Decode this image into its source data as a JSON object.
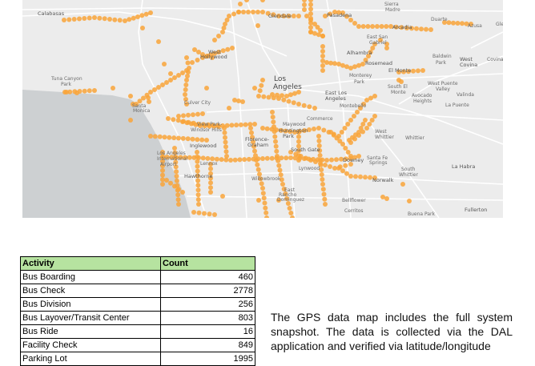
{
  "map": {
    "colors": {
      "land": "#ececec",
      "water": "#cdd0d2",
      "road": "#ffffff",
      "point": "#f9a53a"
    },
    "labels": [
      "Calabasas",
      "Glendale",
      "Pasadena",
      "Sierra",
      "Madre",
      "Duarte",
      "Azusa",
      "Glendo",
      "Arcadia",
      "East San",
      "Gabriel",
      "Alhambra",
      "Rosemead",
      "El Monte",
      "Baldwin",
      "Park",
      "West",
      "Covina",
      "Covina",
      "Monterey",
      "Park",
      "Los",
      "Angeles",
      "South El",
      "Monte",
      "West Puente",
      "Valley",
      "Avocado",
      "Heights",
      "Valinda",
      "La Puente",
      "East Los",
      "Angeles",
      "Montebello",
      "West",
      "Hollywood",
      "Tuna Canyon",
      "Park",
      "Santa",
      "Monica",
      "Culver City",
      "View Park-",
      "Windsor Hills",
      "Maywood",
      "Commerce",
      "Huntington",
      "Park",
      "Florence-",
      "Graham",
      "Inglewood",
      "South Gate",
      "West",
      "Whittier",
      "Whittier",
      "Los Angeles",
      "International",
      "Airport",
      "Lennox",
      "Downey",
      "Santa Fe",
      "Springs",
      "Lynwood",
      "Hawthorne",
      "Willowbrook",
      "Norwalk",
      "South",
      "Whittier",
      "La Habra",
      "East",
      "Rancho",
      "Dominguez",
      "Bellflower",
      "Cerritos",
      "Buena Park",
      "Fullerton"
    ]
  },
  "table": {
    "headers": [
      "Activity",
      "Count"
    ],
    "rows": [
      [
        "Bus Boarding",
        "460"
      ],
      [
        "Bus Check",
        "2778"
      ],
      [
        "Bus Division",
        "256"
      ],
      [
        "Bus Layover/Transit Center",
        "803"
      ],
      [
        "Bus Ride",
        "16"
      ],
      [
        "Facility Check",
        "849"
      ],
      [
        "Parking Lot",
        "1995"
      ]
    ]
  },
  "paragraph": "The GPS data map includes the full system snapshot. The data is collected via the DAL application and verified via latitude/longitude"
}
